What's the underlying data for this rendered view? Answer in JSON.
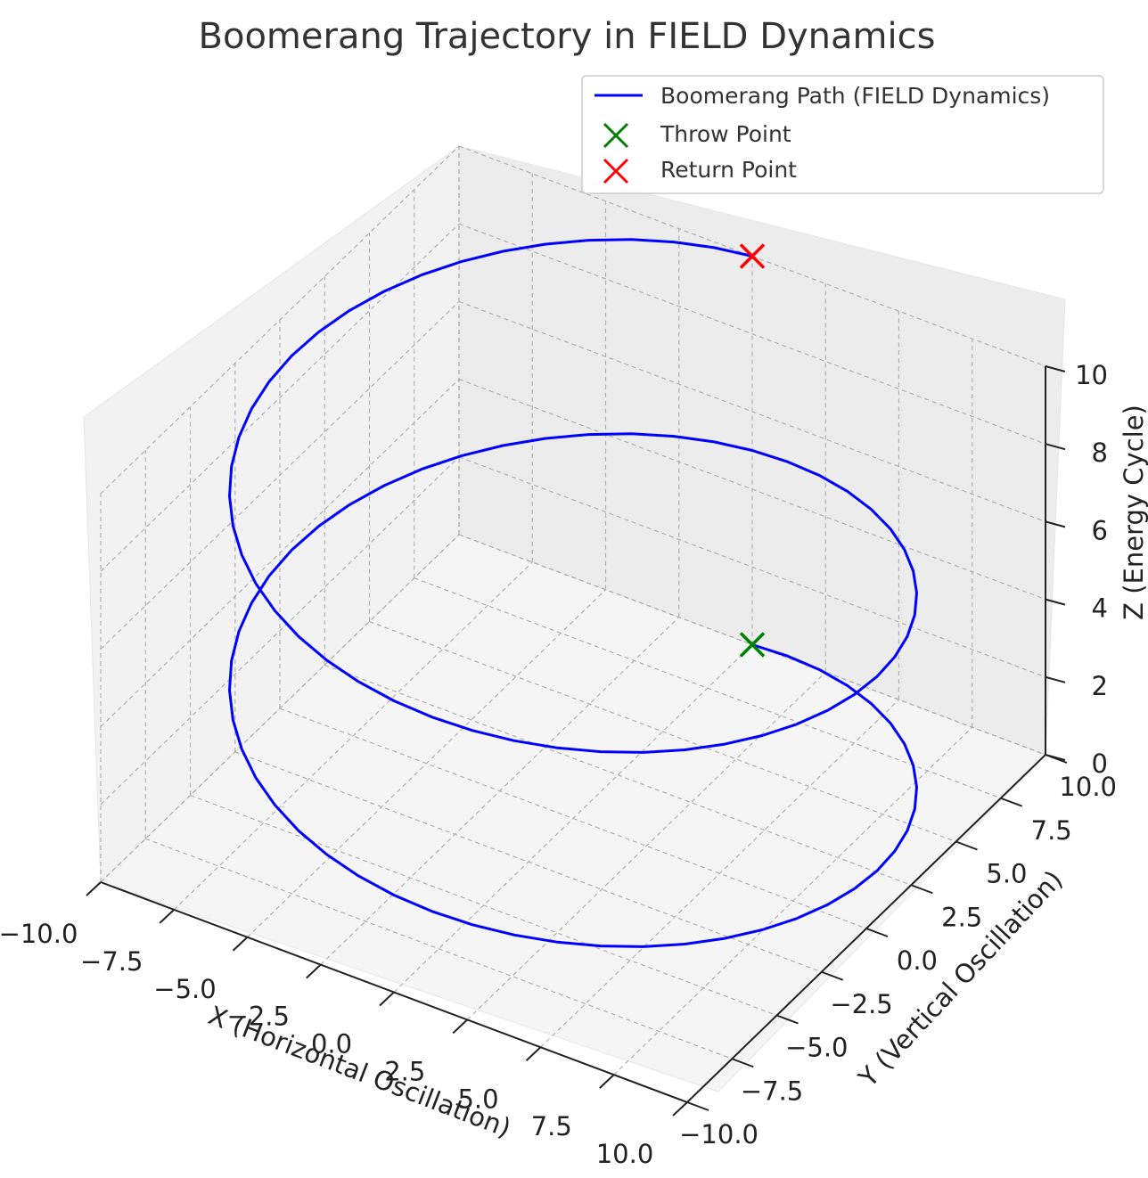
{
  "chart_data": {
    "type": "line",
    "projection": "3d",
    "title": "Boomerang Trajectory in FIELD Dynamics",
    "xlabel": "X (Horizontal Oscillation)",
    "ylabel": "Y (Vertical Oscillation)",
    "zlabel": "Z (Energy Cycle)",
    "xlim": [
      -10,
      10
    ],
    "ylim": [
      -10,
      10
    ],
    "zlim": [
      0,
      10
    ],
    "x_ticks": [
      "−10.0",
      "−7.5",
      "−5.0",
      "−2.5",
      "0.0",
      "2.5",
      "5.0",
      "7.5",
      "10.0"
    ],
    "y_ticks": [
      "−10.0",
      "−7.5",
      "−5.0",
      "−2.5",
      "0.0",
      "2.5",
      "5.0",
      "7.5",
      "10.0"
    ],
    "z_ticks": [
      "0",
      "2",
      "4",
      "6",
      "8",
      "10"
    ],
    "grid": true,
    "legend_position": "top-right",
    "series": [
      {
        "name": "Boomerang Path (FIELD Dynamics)",
        "kind": "line",
        "color": "#0000ff",
        "param": "t in [0, 4π]",
        "x": "10·sin(t)",
        "y": "10·cos(t)",
        "z": "10·t/(4π)"
      },
      {
        "name": "Throw Point",
        "kind": "marker",
        "marker": "x",
        "color": "#008000",
        "x": 0,
        "y": 10,
        "z": 0
      },
      {
        "name": "Return Point",
        "kind": "marker",
        "marker": "x",
        "color": "#ff0000",
        "x": 0,
        "y": 10,
        "z": 10
      }
    ]
  }
}
